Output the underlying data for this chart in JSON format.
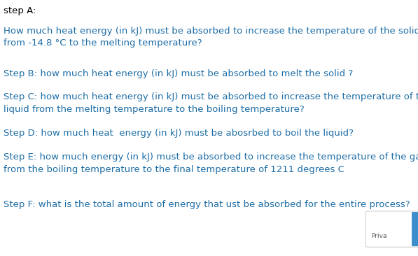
{
  "bg_color": "#ffffff",
  "text_color": "#1e6ea7",
  "step_a_label": "step A:",
  "step_a_label_color": "#000000",
  "step_a_line1": "How much heat energy (in kJ) must be absorbed to increase the temperature of the solid",
  "step_a_line2": "from -14.8 °C to the melting temperature?",
  "step_b": "Step B: how much heat energy (in kJ) must be absorbed to melt the solid ?",
  "step_c_line1": "Step C: how much heat energy (in kJ) must be absorbed to increase the temperature of the",
  "step_c_line2": "liquid from the melting temperature to the boiling temperature?",
  "step_d": "Step D: how much heat  energy (in kJ) must be abosrbed to boil the liquid?",
  "step_e_line1": "Step E: how much energy (in kJ) must be absorbed to increase the temperature of the gas",
  "step_e_line2": "from the boiling temperature to the final temperature of 1211 degrees C",
  "step_f": "Step F: what is the total amount of energy that ust be absorbed for the entire process?",
  "privacy_text": "Priva",
  "font_size": 9.5,
  "label_color": "#000000",
  "privacy_box_color": "#ffffff",
  "privacy_box_edge": "#cccccc",
  "privacy_icon_color": "#3d8fcc"
}
